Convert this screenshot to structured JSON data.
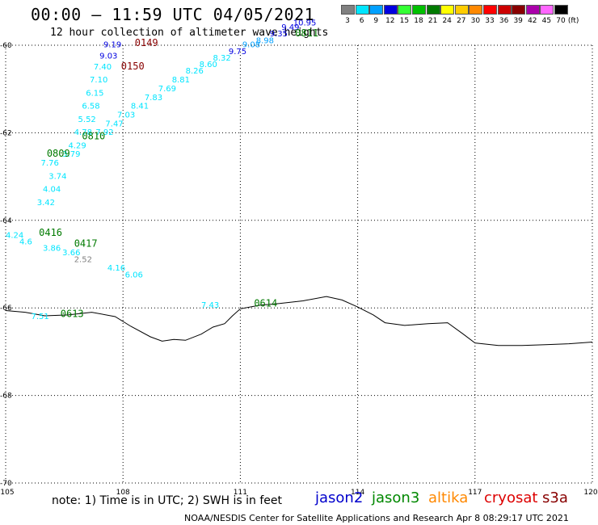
{
  "header": {
    "title": "00:00 – 11:59 UTC 04/05/2021",
    "subtitle": "12 hour collection of altimeter wave heights"
  },
  "color_scale": {
    "unit_label": "(ft)",
    "steps": [
      {
        "label": "3",
        "color": "#808080"
      },
      {
        "label": "6",
        "color": "#00e5ff"
      },
      {
        "label": "9",
        "color": "#00a0ff"
      },
      {
        "label": "12",
        "color": "#0000e0"
      },
      {
        "label": "15",
        "color": "#33ff33"
      },
      {
        "label": "18",
        "color": "#00c000"
      },
      {
        "label": "21",
        "color": "#007a00"
      },
      {
        "label": "24",
        "color": "#ffff00"
      },
      {
        "label": "27",
        "color": "#ffcc00"
      },
      {
        "label": "30",
        "color": "#ff8800"
      },
      {
        "label": "33",
        "color": "#ff0000"
      },
      {
        "label": "36",
        "color": "#cc0000"
      },
      {
        "label": "39",
        "color": "#880000"
      },
      {
        "label": "42",
        "color": "#aa00aa"
      },
      {
        "label": "45",
        "color": "#ff66ff"
      },
      {
        "label": "70",
        "color": "#000000"
      }
    ]
  },
  "map": {
    "lon_range": [
      105,
      120
    ],
    "lat_range": [
      -70,
      -60
    ],
    "lat_labels": [
      "-60",
      "-62",
      "-64",
      "-66",
      "-68",
      "-70"
    ],
    "lon_labels": [
      "105",
      "108",
      "111",
      "114",
      "117",
      "120"
    ],
    "grid_color": "#000000",
    "coast_color": "#000000",
    "coastline": [
      [
        105.0,
        -66.06
      ],
      [
        105.5,
        -66.1
      ],
      [
        106.0,
        -66.18
      ],
      [
        106.6,
        -66.16
      ],
      [
        107.2,
        -66.1
      ],
      [
        107.8,
        -66.2
      ],
      [
        108.2,
        -66.42
      ],
      [
        108.7,
        -66.66
      ],
      [
        109.0,
        -66.76
      ],
      [
        109.3,
        -66.72
      ],
      [
        109.6,
        -66.74
      ],
      [
        110.0,
        -66.6
      ],
      [
        110.3,
        -66.44
      ],
      [
        110.6,
        -66.36
      ],
      [
        110.8,
        -66.18
      ],
      [
        111.0,
        -66.02
      ],
      [
        111.5,
        -65.94
      ],
      [
        112.0,
        -65.9
      ],
      [
        112.6,
        -65.84
      ],
      [
        113.2,
        -65.74
      ],
      [
        113.6,
        -65.82
      ],
      [
        114.0,
        -65.98
      ],
      [
        114.4,
        -66.16
      ],
      [
        114.7,
        -66.34
      ],
      [
        115.2,
        -66.4
      ],
      [
        115.8,
        -66.36
      ],
      [
        116.3,
        -66.34
      ],
      [
        116.7,
        -66.6
      ],
      [
        117.0,
        -66.8
      ],
      [
        117.6,
        -66.86
      ],
      [
        118.2,
        -66.86
      ],
      [
        118.8,
        -66.84
      ],
      [
        119.4,
        -66.82
      ],
      [
        120.0,
        -66.78
      ]
    ]
  },
  "observations": [
    {
      "lon": 107.5,
      "lat": -60.05,
      "text": "9.19",
      "color": "#0000e0"
    },
    {
      "lon": 107.4,
      "lat": -60.3,
      "text": "9.03",
      "color": "#0000e0"
    },
    {
      "lon": 107.25,
      "lat": -60.55,
      "text": "7.40",
      "color": "#00e5ff"
    },
    {
      "lon": 107.15,
      "lat": -60.85,
      "text": "7.10",
      "color": "#00e5ff"
    },
    {
      "lon": 107.05,
      "lat": -61.15,
      "text": "6.15",
      "color": "#00e5ff"
    },
    {
      "lon": 106.95,
      "lat": -61.45,
      "text": "6.58",
      "color": "#00e5ff"
    },
    {
      "lon": 106.85,
      "lat": -61.75,
      "text": "5.52",
      "color": "#00e5ff"
    },
    {
      "lon": 106.75,
      "lat": -62.05,
      "text": "4.78",
      "color": "#00e5ff"
    },
    {
      "lon": 106.6,
      "lat": -62.35,
      "text": "4.29",
      "color": "#00e5ff"
    },
    {
      "lon": 106.45,
      "lat": -62.55,
      "text": "3.79",
      "color": "#00e5ff"
    },
    {
      "lon": 105.9,
      "lat": -62.75,
      "text": "7.76",
      "color": "#00e5ff"
    },
    {
      "lon": 106.1,
      "lat": -63.05,
      "text": "3.74",
      "color": "#00e5ff"
    },
    {
      "lon": 105.95,
      "lat": -63.35,
      "text": "4.04",
      "color": "#00e5ff"
    },
    {
      "lon": 105.8,
      "lat": -63.65,
      "text": "3.42",
      "color": "#00e5ff"
    },
    {
      "lon": 107.3,
      "lat": -62.05,
      "text": "7.92",
      "color": "#00e5ff"
    },
    {
      "lon": 107.55,
      "lat": -61.85,
      "text": "7.47",
      "color": "#00e5ff"
    },
    {
      "lon": 107.85,
      "lat": -61.65,
      "text": "7.03",
      "color": "#00e5ff"
    },
    {
      "lon": 108.2,
      "lat": -61.45,
      "text": "8.41",
      "color": "#00e5ff"
    },
    {
      "lon": 108.55,
      "lat": -61.25,
      "text": "7.83",
      "color": "#00e5ff"
    },
    {
      "lon": 108.9,
      "lat": -61.05,
      "text": "7.69",
      "color": "#00e5ff"
    },
    {
      "lon": 109.25,
      "lat": -60.85,
      "text": "8.81",
      "color": "#00e5ff"
    },
    {
      "lon": 109.6,
      "lat": -60.65,
      "text": "8.26",
      "color": "#00e5ff"
    },
    {
      "lon": 109.95,
      "lat": -60.5,
      "text": "8.60",
      "color": "#00e5ff"
    },
    {
      "lon": 110.3,
      "lat": -60.35,
      "text": "8.32",
      "color": "#00e5ff"
    },
    {
      "lon": 110.7,
      "lat": -60.2,
      "text": "9.75",
      "color": "#0000e0"
    },
    {
      "lon": 111.05,
      "lat": -60.05,
      "text": "9.08",
      "color": "#00a0ff"
    },
    {
      "lon": 111.4,
      "lat": -59.95,
      "text": "8.98",
      "color": "#00a0ff"
    },
    {
      "lon": 111.75,
      "lat": -59.8,
      "text": "9.35",
      "color": "#0000e0"
    },
    {
      "lon": 112.05,
      "lat": -59.65,
      "text": "9.49",
      "color": "#0000e0"
    },
    {
      "lon": 112.35,
      "lat": -59.55,
      "text": "10.95",
      "color": "#0000e0"
    },
    {
      "lon": 105.0,
      "lat": -64.4,
      "text": "4.24",
      "color": "#00e5ff"
    },
    {
      "lon": 105.35,
      "lat": -64.55,
      "text": "4.6",
      "color": "#00e5ff"
    },
    {
      "lon": 105.95,
      "lat": -64.7,
      "text": "3.86",
      "color": "#00e5ff"
    },
    {
      "lon": 106.45,
      "lat": -64.8,
      "text": "3.66",
      "color": "#00e5ff"
    },
    {
      "lon": 106.75,
      "lat": -64.95,
      "text": "2.52",
      "color": "#808080"
    },
    {
      "lon": 107.6,
      "lat": -65.15,
      "text": "4.16",
      "color": "#00e5ff"
    },
    {
      "lon": 108.05,
      "lat": -65.3,
      "text": "6.06",
      "color": "#00e5ff"
    },
    {
      "lon": 110.0,
      "lat": -66.0,
      "text": "7.43",
      "color": "#00e5ff"
    },
    {
      "lon": 105.65,
      "lat": -66.25,
      "text": "7.51",
      "color": "#00e5ff"
    }
  ],
  "pass_times": [
    {
      "lon": 108.3,
      "lat": -60.02,
      "text": "0149",
      "color": "#880000"
    },
    {
      "lon": 107.95,
      "lat": -60.55,
      "text": "0150",
      "color": "#880000"
    },
    {
      "lon": 112.4,
      "lat": -59.8,
      "text": "0811",
      "color": "#007a00"
    },
    {
      "lon": 106.95,
      "lat": -62.15,
      "text": "0810",
      "color": "#007a00"
    },
    {
      "lon": 106.05,
      "lat": -62.55,
      "text": "0809",
      "color": "#007a00"
    },
    {
      "lon": 105.85,
      "lat": -64.35,
      "text": "0416",
      "color": "#007a00"
    },
    {
      "lon": 106.75,
      "lat": -64.6,
      "text": "0417",
      "color": "#007a00"
    },
    {
      "lon": 111.35,
      "lat": -65.97,
      "text": "0614",
      "color": "#007a00"
    },
    {
      "lon": 106.4,
      "lat": -66.21,
      "text": "0613",
      "color": "#007a00"
    }
  ],
  "footer": {
    "note": "note:  1) Time is in UTC;  2) SWH is in feet",
    "credit": "NOAA/NESDIS Center for Satellite Applications and Research   Apr  8 08:29:17 UTC 2021",
    "satellites": [
      {
        "name": "jason2",
        "color": "#0000cc"
      },
      {
        "name": "jason3",
        "color": "#008800"
      },
      {
        "name": "altika",
        "color": "#ff8800"
      },
      {
        "name": "cryosat",
        "color": "#dd0000"
      },
      {
        "name": "s3a",
        "color": "#880000"
      }
    ]
  }
}
